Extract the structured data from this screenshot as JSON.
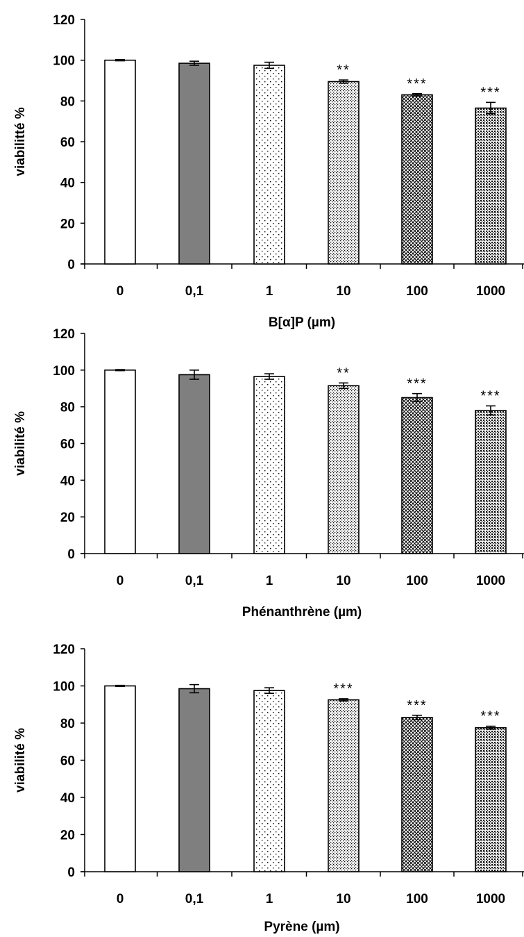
{
  "chart_data": [
    {
      "type": "bar",
      "xlabel": "B[α]P (µm)",
      "ylabel": "viabilitté %",
      "ylim": [
        0,
        120
      ],
      "yticks": [
        "0",
        "20",
        "40",
        "60",
        "80",
        "100",
        "120"
      ],
      "categories": [
        "0",
        "0,1",
        "1",
        "10",
        "100",
        "1000"
      ],
      "values": [
        100,
        98.5,
        97.5,
        89.5,
        83,
        76.5
      ],
      "errors": [
        0.3,
        1.0,
        1.5,
        0.8,
        0.6,
        2.8
      ],
      "significance": [
        "",
        "",
        "",
        "**",
        "***",
        "***"
      ],
      "fills": [
        "white",
        "gray",
        "sparse-dots",
        "dense-dots",
        "crosshatch",
        "dense-grid"
      ],
      "grid": false,
      "legend": "none"
    },
    {
      "type": "bar",
      "xlabel": "Phénanthrène (µm)",
      "ylabel": "viabilité %",
      "ylim": [
        0,
        120
      ],
      "yticks": [
        "0",
        "20",
        "40",
        "60",
        "80",
        "100",
        "120"
      ],
      "categories": [
        "0",
        "0,1",
        "1",
        "10",
        "100",
        "1000"
      ],
      "values": [
        100,
        97.5,
        96.5,
        91.5,
        85,
        78
      ],
      "errors": [
        0.3,
        2.5,
        1.5,
        1.5,
        2.2,
        2.5
      ],
      "significance": [
        "",
        "",
        "",
        "**",
        "***",
        "***"
      ],
      "fills": [
        "white",
        "gray",
        "sparse-dots",
        "dense-dots",
        "crosshatch",
        "dense-grid"
      ],
      "grid": false,
      "legend": "none"
    },
    {
      "type": "bar",
      "xlabel": "Pyrène (µm)",
      "ylabel": "viabilité %",
      "ylim": [
        0,
        120
      ],
      "yticks": [
        "0",
        "20",
        "40",
        "60",
        "80",
        "100",
        "120"
      ],
      "categories": [
        "0",
        "0,1",
        "1",
        "10",
        "100",
        "1000"
      ],
      "values": [
        100,
        98.5,
        97.5,
        92.5,
        83,
        77.5
      ],
      "errors": [
        0.3,
        2.2,
        1.5,
        0.6,
        1.2,
        0.8
      ],
      "significance": [
        "",
        "",
        "",
        "***",
        "***",
        "***"
      ],
      "fills": [
        "white",
        "gray",
        "sparse-dots",
        "dense-dots",
        "crosshatch",
        "dense-grid"
      ],
      "grid": false,
      "legend": "none"
    }
  ],
  "colors": {
    "bar_stroke": "#000000",
    "bar_gray": "#7f7f7f",
    "pattern_ink": "#000000",
    "background": "#ffffff"
  }
}
